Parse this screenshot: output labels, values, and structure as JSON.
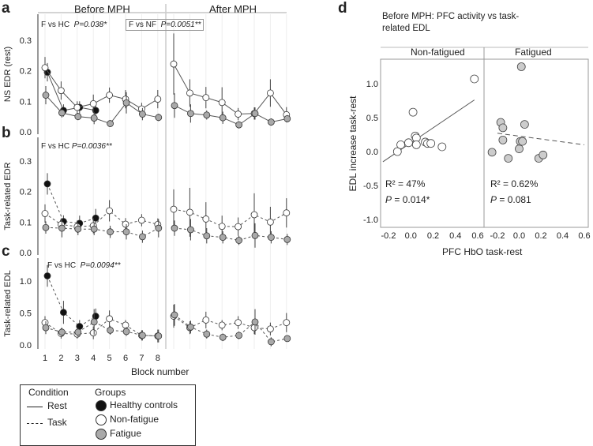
{
  "panel_labels": {
    "a": "a",
    "b": "b",
    "c": "c",
    "d": "d"
  },
  "strips": {
    "before": "Before MPH",
    "after": "After MPH"
  },
  "xlabel": "Block number",
  "blocks": [
    "1",
    "2",
    "3",
    "4",
    "5",
    "6",
    "7",
    "8"
  ],
  "legend": {
    "condition_title": "Condition",
    "groups_title": "Groups",
    "rest": "Rest",
    "task": "Task",
    "hc": "Healthy controls",
    "nf": "Non-fatigue",
    "f": "Fatigue"
  },
  "colors": {
    "hc": "#111111",
    "nf": "#ffffff",
    "f": "#a9a9a9",
    "line": "#555555"
  },
  "chart_data": [
    {
      "type": "line",
      "panel": "a",
      "ylabel": "NS EDR (rest)",
      "ylim": [
        0,
        0.36
      ],
      "yticks": [
        "0.0",
        "0.1",
        "0.2",
        "0.3"
      ],
      "ytick_values": [
        0,
        0.1,
        0.2,
        0.3
      ],
      "dashed": false,
      "annotations": [
        "F vs HC",
        "P=0.038*",
        "F vs NF",
        "P=0.0051**"
      ],
      "series": [
        {
          "name": "Healthy controls",
          "before": [
            0.195,
            0.07,
            0.08,
            0.07
          ],
          "err": [
            0.03,
            0.02,
            0.02,
            0.025
          ]
        },
        {
          "name": "Non-fatigue",
          "before": [
            0.21,
            0.135,
            0.08,
            0.092,
            0.12,
            0.107,
            0.075,
            0.107
          ],
          "after": [
            0.222,
            0.127,
            0.112,
            0.096,
            0.058,
            0.06,
            0.127,
            0.056
          ],
          "err": [
            0.035,
            0.03,
            0.02,
            0.03,
            0.025,
            0.03,
            0.02,
            0.03
          ],
          "err_after": [
            0.1,
            0.045,
            0.035,
            0.05,
            0.02,
            0.02,
            0.045,
            0.025
          ]
        },
        {
          "name": "Fatigue",
          "before": [
            0.12,
            0.062,
            0.05,
            0.045,
            0.027,
            0.095,
            0.058,
            0.047
          ],
          "after": [
            0.086,
            0.06,
            0.055,
            0.046,
            0.023,
            0.06,
            0.032,
            0.043
          ],
          "err": [
            0.03,
            0.015,
            0.012,
            0.02,
            0.01,
            0.035,
            0.02,
            0.012
          ],
          "err_after": [
            0.04,
            0.03,
            0.015,
            0.02,
            0.012,
            0.02,
            0.012,
            0.012
          ]
        }
      ]
    },
    {
      "type": "line",
      "panel": "b",
      "ylabel": "Task-related EDR",
      "ylim": [
        0,
        0.36
      ],
      "yticks": [
        "0.0",
        "0.1",
        "0.2",
        "0.3"
      ],
      "ytick_values": [
        0,
        0.1,
        0.2,
        0.3
      ],
      "dashed": true,
      "annotations": [
        "F vs HC",
        "P=0.0036**"
      ],
      "series": [
        {
          "name": "Healthy controls",
          "before": [
            0.225,
            0.102,
            0.096,
            0.113
          ],
          "err": [
            0.035,
            0.02,
            0.025,
            0.03
          ]
        },
        {
          "name": "Non-fatigue",
          "before": [
            0.128,
            0.092,
            0.085,
            0.088,
            0.137,
            0.093,
            0.106,
            0.092
          ],
          "after": [
            0.142,
            0.132,
            0.11,
            0.086,
            0.085,
            0.124,
            0.1,
            0.13
          ],
          "err": [
            0.03,
            0.02,
            0.02,
            0.025,
            0.035,
            0.02,
            0.02,
            0.02
          ],
          "err_after": [
            0.065,
            0.08,
            0.055,
            0.035,
            0.03,
            0.07,
            0.05,
            0.048
          ]
        },
        {
          "name": "Fatigue",
          "before": [
            0.082,
            0.08,
            0.077,
            0.077,
            0.068,
            0.068,
            0.052,
            0.08
          ],
          "after": [
            0.08,
            0.075,
            0.055,
            0.05,
            0.04,
            0.056,
            0.05,
            0.043
          ],
          "err": [
            0.02,
            0.03,
            0.02,
            0.02,
            0.02,
            0.025,
            0.02,
            0.03
          ],
          "err_after": [
            0.025,
            0.035,
            0.025,
            0.02,
            0.015,
            0.04,
            0.02,
            0.018
          ]
        }
      ]
    },
    {
      "type": "line",
      "panel": "c",
      "ylabel": "Task-related EDL",
      "ylim": [
        0,
        1.25
      ],
      "yticks": [
        "0.0",
        "0.5",
        "1.0"
      ],
      "ytick_values": [
        0,
        0.5,
        1.0
      ],
      "dashed": true,
      "annotations": [
        "F vs HC",
        "P=0.0094**"
      ],
      "series": [
        {
          "name": "Healthy controls",
          "before": [
            1.08,
            0.51,
            0.29,
            0.45
          ],
          "err": [
            0.17,
            0.18,
            0.1,
            0.12
          ]
        },
        {
          "name": "Non-fatigue",
          "before": [
            0.35,
            0.18,
            0.17,
            0.19,
            0.41,
            0.31,
            0.15,
            0.14
          ],
          "after": [
            0.45,
            0.27,
            0.39,
            0.31,
            0.35,
            0.27,
            0.25,
            0.35
          ],
          "err": [
            0.1,
            0.08,
            0.07,
            0.1,
            0.13,
            0.08,
            0.08,
            0.1
          ],
          "err_after": [
            0.18,
            0.1,
            0.13,
            0.08,
            0.1,
            0.1,
            0.1,
            0.15
          ]
        },
        {
          "name": "Fatigue",
          "before": [
            0.27,
            0.2,
            0.2,
            0.36,
            0.23,
            0.21,
            0.15,
            0.14
          ],
          "after": [
            0.47,
            0.28,
            0.17,
            0.12,
            0.15,
            0.36,
            0.05,
            0.1
          ],
          "err": [
            0.1,
            0.07,
            0.07,
            0.2,
            0.07,
            0.07,
            0.08,
            0.1
          ],
          "err_after": [
            0.17,
            0.1,
            0.07,
            0.06,
            0.06,
            0.2,
            0.07,
            0.05
          ]
        }
      ]
    },
    {
      "type": "scatter",
      "panel": "d",
      "title": "Before MPH: PFC activity vs task-related EDL",
      "xlabel": "PFC HbO task-rest",
      "ylabel": "EDL increase task-rest",
      "xlim": [
        -0.25,
        0.6
      ],
      "ylim": [
        -1.1,
        1.3
      ],
      "xticks": [
        "-0.2",
        "0.0",
        "0.2",
        "0.4",
        "0.6"
      ],
      "xtick_values": [
        -0.2,
        0,
        0.2,
        0.4,
        0.6
      ],
      "yticks": [
        "-1.0",
        "-0.5",
        "0.0",
        "0.5",
        "1.0"
      ],
      "ytick_values": [
        -1,
        -0.5,
        0,
        0.5,
        1
      ],
      "facets": [
        {
          "name": "Non-fatigued",
          "r2": "R",
          "r2_value": " = 47%",
          "p_label": "P",
          "p_value": " = 0.014*",
          "fit": [
            [
              -0.25,
              -0.15
            ],
            [
              0.57,
              0.76
            ]
          ],
          "fit_dashed": false,
          "x": [
            -0.12,
            -0.09,
            -0.02,
            0.02,
            0.04,
            0.05,
            0.05,
            0.13,
            0.15,
            0.18,
            0.28,
            0.57
          ],
          "y": [
            0,
            0.1,
            0.13,
            0.58,
            0.23,
            0.2,
            0.1,
            0.14,
            0.12,
            0.12,
            0.07,
            1.07
          ]
        },
        {
          "name": "Fatigued",
          "r2": "R",
          "r2_value": " = 0.62%",
          "p_label": "P",
          "p_value": " = 0.081",
          "fit": [
            [
              -0.2,
              0.27
            ],
            [
              0.6,
              0.1
            ]
          ],
          "fit_dashed": true,
          "x": [
            -0.25,
            -0.17,
            -0.15,
            -0.15,
            -0.1,
            0.0,
            0.01,
            0.03,
            0.02,
            0.05,
            0.18,
            0.22
          ],
          "y": [
            -0.01,
            0.43,
            0.35,
            0.17,
            -0.1,
            0.04,
            0.15,
            0.15,
            1.25,
            0.4,
            -0.1,
            -0.05
          ]
        }
      ]
    }
  ]
}
